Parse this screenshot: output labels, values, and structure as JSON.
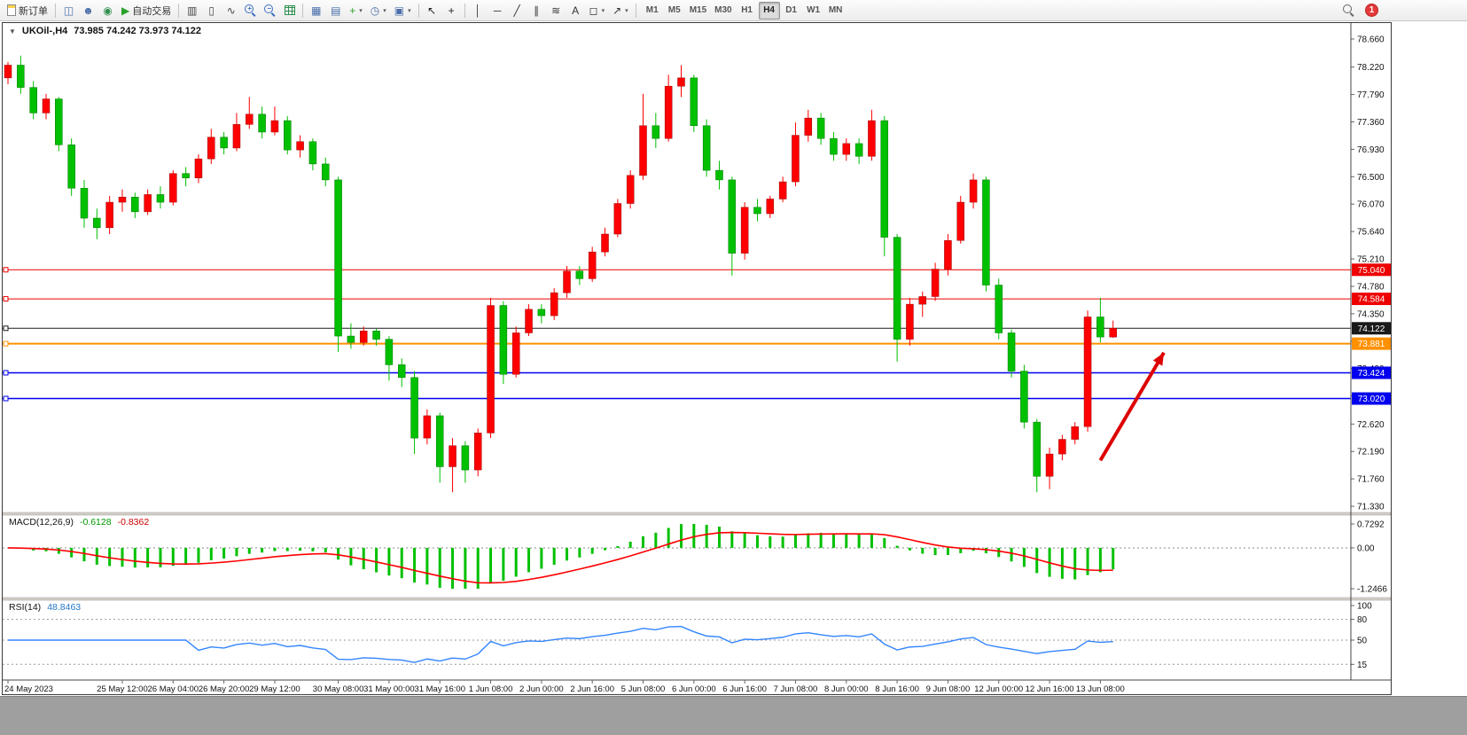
{
  "toolbar": {
    "notification_count": "1",
    "timeframes": [
      "M1",
      "M5",
      "M15",
      "M30",
      "H1",
      "H4",
      "D1",
      "W1",
      "MN"
    ],
    "active_timeframe": "H4",
    "buttons": [
      {
        "name": "new-order",
        "icon_name": "new-order-icon",
        "cls": "doc-ic",
        "label": "新订单"
      },
      {
        "sep": true
      },
      {
        "name": "chart-window",
        "icon_name": "chart-window-icon",
        "glyph": "◫",
        "color": "#4a6ea9"
      },
      {
        "name": "profile",
        "icon_name": "profile-icon",
        "glyph": "☻",
        "color": "#4a6ea9"
      },
      {
        "name": "market-watch",
        "icon_name": "globe-icon",
        "glyph": "◉",
        "color": "#2f8f4f"
      },
      {
        "name": "auto-trading",
        "icon_name": "play-icon",
        "glyph": "▶",
        "color": "#2aa02a",
        "label": "自动交易"
      },
      {
        "sep": true
      },
      {
        "name": "bar-chart-mode",
        "icon_name": "bar-chart-icon",
        "glyph": "▥",
        "color": "#444444"
      },
      {
        "name": "candle-chart-mode",
        "icon_name": "candlestick-icon",
        "glyph": "▯",
        "color": "#444444"
      },
      {
        "name": "line-chart-mode",
        "icon_name": "line-chart-icon",
        "glyph": "∿",
        "color": "#444444"
      },
      {
        "name": "zoom-in",
        "icon_name": "zoom-in-icon",
        "cls": "mag",
        "glyph": "+"
      },
      {
        "name": "zoom-out",
        "icon_name": "zoom-out-icon",
        "cls": "mag",
        "glyph": "−"
      },
      {
        "name": "grid-toggle",
        "icon_name": "grid-icon",
        "cls": "grid-ic"
      },
      {
        "sep": true
      },
      {
        "name": "tile-windows",
        "icon_name": "tile-windows-icon",
        "glyph": "▦",
        "color": "#4a6ea9"
      },
      {
        "name": "new-chart",
        "icon_name": "new-chart-icon",
        "glyph": "▤",
        "color": "#4a6ea9"
      },
      {
        "name": "indicators",
        "icon_name": "plus-icon",
        "glyph": "+",
        "color": "#2aa02a",
        "caret": true
      },
      {
        "name": "periods",
        "icon_name": "clock-icon",
        "glyph": "◷",
        "color": "#4a6ea9",
        "caret": true
      },
      {
        "name": "templates",
        "icon_name": "template-icon",
        "glyph": "▣",
        "color": "#4a6ea9",
        "caret": true
      },
      {
        "sep": true
      },
      {
        "name": "cursor-tool",
        "icon_name": "cursor-icon",
        "glyph": "↖",
        "color": "#222222"
      },
      {
        "name": "crosshair-tool",
        "icon_name": "crosshair-icon",
        "glyph": "+",
        "color": "#222222"
      },
      {
        "sep": true
      },
      {
        "name": "vertical-line-tool",
        "icon_name": "vertical-line-icon",
        "glyph": "│",
        "color": "#333333"
      },
      {
        "name": "horizontal-line-tool",
        "icon_name": "horizontal-line-icon",
        "glyph": "─",
        "color": "#333333"
      },
      {
        "name": "trendline-tool",
        "icon_name": "trendline-icon",
        "glyph": "╱",
        "color": "#333333"
      },
      {
        "name": "channel-tool",
        "icon_name": "channel-icon",
        "glyph": "∥",
        "color": "#333333"
      },
      {
        "name": "fibonacci-tool",
        "icon_name": "fibonacci-icon",
        "glyph": "≋",
        "color": "#333333"
      },
      {
        "name": "text-tool",
        "icon_name": "text-icon",
        "glyph": "A",
        "color": "#333333"
      },
      {
        "name": "shapes-tool",
        "icon_name": "shapes-icon",
        "glyph": "◻",
        "color": "#333333",
        "caret": true
      },
      {
        "name": "arrows-tool",
        "icon_name": "arrow-icon",
        "glyph": "↗",
        "color": "#333333",
        "caret": true
      },
      {
        "sep": true
      }
    ]
  },
  "icons": {
    "caret_down": "▼"
  },
  "chart": {
    "title": "UKOil-,H4",
    "ohlc": "73.985 74.242 73.973 74.122"
  },
  "chart_data": {
    "type": "candlestick",
    "symbol": "UKOil-",
    "timeframe": "H4",
    "up_color": "#ff0000",
    "down_color": "#00c000",
    "up_border": "#990000",
    "down_border": "#007700",
    "current_ohlc": {
      "open": 73.985,
      "high": 74.242,
      "low": 73.973,
      "close": 74.122
    },
    "y_axis_ticks": [
      "78.660",
      "78.220",
      "77.790",
      "77.360",
      "76.930",
      "76.500",
      "76.070",
      "75.640",
      "75.210",
      "74.780",
      "74.350",
      "73.920",
      "73.490",
      "73.060",
      "72.620",
      "72.190",
      "71.760",
      "71.330"
    ],
    "time_labels": [
      [
        "24 May 2023",
        0
      ],
      [
        "25 May 12:00",
        9
      ],
      [
        "26 May 04:00",
        13
      ],
      [
        "26 May 20:00",
        17
      ],
      [
        "29 May 12:00",
        21
      ],
      [
        "30 May 08:00",
        26
      ],
      [
        "31 May 00:00",
        30
      ],
      [
        "31 May 16:00",
        34
      ],
      [
        "1 Jun 08:00",
        38
      ],
      [
        "2 Jun 00:00",
        42
      ],
      [
        "2 Jun 16:00",
        46
      ],
      [
        "5 Jun 08:00",
        50
      ],
      [
        "6 Jun 00:00",
        54
      ],
      [
        "6 Jun 16:00",
        58
      ],
      [
        "7 Jun 08:00",
        62
      ],
      [
        "8 Jun 00:00",
        66
      ],
      [
        "8 Jun 16:00",
        70
      ],
      [
        "9 Jun 08:00",
        74
      ],
      [
        "12 Jun 00:00",
        78
      ],
      [
        "12 Jun 16:00",
        82
      ],
      [
        "13 Jun 08:00",
        86
      ]
    ],
    "candles": [
      [
        78.05,
        78.3,
        77.95,
        78.25
      ],
      [
        78.25,
        78.4,
        77.8,
        77.9
      ],
      [
        77.9,
        78.0,
        77.4,
        77.5
      ],
      [
        77.5,
        77.8,
        77.4,
        77.72
      ],
      [
        77.72,
        77.75,
        76.9,
        77.0
      ],
      [
        77.0,
        77.1,
        76.2,
        76.32
      ],
      [
        76.32,
        76.45,
        75.7,
        75.85
      ],
      [
        75.85,
        76.0,
        75.52,
        75.7
      ],
      [
        75.7,
        76.2,
        75.6,
        76.1
      ],
      [
        76.1,
        76.3,
        75.95,
        76.18
      ],
      [
        76.18,
        76.25,
        75.85,
        75.95
      ],
      [
        75.95,
        76.3,
        75.9,
        76.22
      ],
      [
        76.22,
        76.35,
        76.0,
        76.1
      ],
      [
        76.1,
        76.6,
        76.05,
        76.55
      ],
      [
        76.55,
        76.65,
        76.35,
        76.48
      ],
      [
        76.48,
        76.85,
        76.4,
        76.78
      ],
      [
        76.78,
        77.25,
        76.7,
        77.12
      ],
      [
        77.12,
        77.2,
        76.85,
        76.95
      ],
      [
        76.95,
        77.5,
        76.9,
        77.32
      ],
      [
        77.32,
        77.75,
        77.25,
        77.48
      ],
      [
        77.48,
        77.6,
        77.1,
        77.2
      ],
      [
        77.2,
        77.6,
        77.15,
        77.38
      ],
      [
        77.38,
        77.45,
        76.85,
        76.92
      ],
      [
        76.92,
        77.15,
        76.8,
        77.05
      ],
      [
        77.05,
        77.1,
        76.6,
        76.7
      ],
      [
        76.7,
        76.8,
        76.35,
        76.45
      ],
      [
        76.45,
        76.5,
        73.75,
        74.0
      ],
      [
        74.0,
        74.2,
        73.8,
        73.9
      ],
      [
        73.9,
        74.15,
        73.85,
        74.08
      ],
      [
        74.08,
        74.12,
        73.85,
        73.95
      ],
      [
        73.95,
        74.0,
        73.3,
        73.55
      ],
      [
        73.55,
        73.65,
        73.2,
        73.35
      ],
      [
        73.35,
        73.45,
        72.15,
        72.4
      ],
      [
        72.4,
        72.85,
        72.3,
        72.75
      ],
      [
        72.75,
        72.8,
        71.7,
        71.95
      ],
      [
        71.95,
        72.4,
        71.55,
        72.28
      ],
      [
        72.28,
        72.35,
        71.7,
        71.9
      ],
      [
        71.9,
        72.55,
        71.8,
        72.48
      ],
      [
        72.48,
        74.6,
        72.4,
        74.48
      ],
      [
        74.48,
        74.55,
        73.25,
        73.4
      ],
      [
        73.4,
        74.15,
        73.35,
        74.05
      ],
      [
        74.05,
        74.5,
        74.0,
        74.42
      ],
      [
        74.42,
        74.5,
        74.2,
        74.32
      ],
      [
        74.32,
        74.75,
        74.25,
        74.68
      ],
      [
        74.68,
        75.1,
        74.6,
        75.02
      ],
      [
        75.02,
        75.1,
        74.8,
        74.9
      ],
      [
        74.9,
        75.4,
        74.85,
        75.32
      ],
      [
        75.32,
        75.7,
        75.25,
        75.6
      ],
      [
        75.6,
        76.15,
        75.55,
        76.08
      ],
      [
        76.08,
        76.6,
        76.0,
        76.52
      ],
      [
        76.52,
        77.8,
        76.45,
        77.3
      ],
      [
        77.3,
        77.5,
        76.95,
        77.1
      ],
      [
        77.1,
        78.1,
        77.05,
        77.92
      ],
      [
        77.92,
        78.25,
        77.75,
        78.05
      ],
      [
        78.05,
        78.1,
        77.2,
        77.3
      ],
      [
        77.3,
        77.4,
        76.5,
        76.6
      ],
      [
        76.6,
        76.75,
        76.3,
        76.45
      ],
      [
        76.45,
        76.5,
        74.95,
        75.3
      ],
      [
        75.3,
        76.1,
        75.2,
        76.02
      ],
      [
        76.02,
        76.15,
        75.8,
        75.92
      ],
      [
        75.92,
        76.2,
        75.85,
        76.15
      ],
      [
        76.15,
        76.5,
        76.1,
        76.42
      ],
      [
        76.42,
        77.35,
        76.35,
        77.15
      ],
      [
        77.15,
        77.55,
        77.05,
        77.42
      ],
      [
        77.42,
        77.5,
        77.0,
        77.1
      ],
      [
        77.1,
        77.2,
        76.75,
        76.85
      ],
      [
        76.85,
        77.1,
        76.75,
        77.02
      ],
      [
        77.02,
        77.1,
        76.7,
        76.82
      ],
      [
        76.82,
        77.55,
        76.75,
        77.38
      ],
      [
        77.38,
        77.45,
        75.25,
        75.55
      ],
      [
        75.55,
        75.6,
        73.6,
        73.95
      ],
      [
        73.95,
        74.6,
        73.85,
        74.5
      ],
      [
        74.5,
        74.7,
        74.3,
        74.62
      ],
      [
        74.62,
        75.15,
        74.55,
        75.05
      ],
      [
        75.05,
        75.6,
        74.95,
        75.5
      ],
      [
        75.5,
        76.2,
        75.45,
        76.1
      ],
      [
        76.1,
        76.55,
        76.0,
        76.45
      ],
      [
        76.45,
        76.5,
        74.7,
        74.8
      ],
      [
        74.8,
        74.9,
        73.95,
        74.05
      ],
      [
        74.05,
        74.1,
        73.35,
        73.45
      ],
      [
        73.45,
        73.55,
        72.55,
        72.65
      ],
      [
        72.65,
        72.7,
        71.55,
        71.8
      ],
      [
        71.8,
        72.25,
        71.6,
        72.15
      ],
      [
        72.15,
        72.45,
        72.05,
        72.38
      ],
      [
        72.38,
        72.65,
        72.3,
        72.58
      ],
      [
        72.58,
        74.4,
        72.5,
        74.3
      ],
      [
        74.3,
        74.6,
        73.9,
        73.985
      ],
      [
        73.985,
        74.242,
        73.973,
        74.122
      ]
    ],
    "price_lines": [
      {
        "price": 75.04,
        "label": "75.040",
        "color": "#ee0000",
        "width": 1
      },
      {
        "price": 74.584,
        "label": "74.584",
        "color": "#ee0000",
        "width": 1
      },
      {
        "price": 74.122,
        "label": "74.122",
        "color": "#1a1a1a",
        "width": 1,
        "name": "current-price-line"
      },
      {
        "price": 73.881,
        "label": "73.881",
        "color": "#ff9000",
        "width": 2
      },
      {
        "price": 73.424,
        "label": "73.424",
        "color": "#0000ee",
        "width": 1.5
      },
      {
        "price": 73.02,
        "label": "73.020",
        "color": "#0000ee",
        "width": 1.5
      }
    ],
    "arrow": {
      "from_bar": 86,
      "from_price": 72.05,
      "to_bar": 91,
      "to_price": 73.74,
      "color": "#dd0000"
    },
    "macd": {
      "label": "MACD(12,26,9)",
      "value_macd": "-0.6128",
      "value_signal": "-0.8362",
      "params": [
        12,
        26,
        9
      ],
      "scale_max": 0.7292,
      "scale_min": -1.2466,
      "scale_labels": [
        "0.7292",
        "0.00",
        "-1.2466"
      ],
      "hist_color": "#00c000",
      "signal_color": "#ff0000"
    },
    "rsi": {
      "label": "RSI(14)",
      "value": "48.8463",
      "period": 14,
      "scale_labels": [
        "100",
        "80",
        "50",
        "15"
      ],
      "levels": [
        80,
        50,
        15
      ],
      "line_color": "#3385ff"
    }
  }
}
